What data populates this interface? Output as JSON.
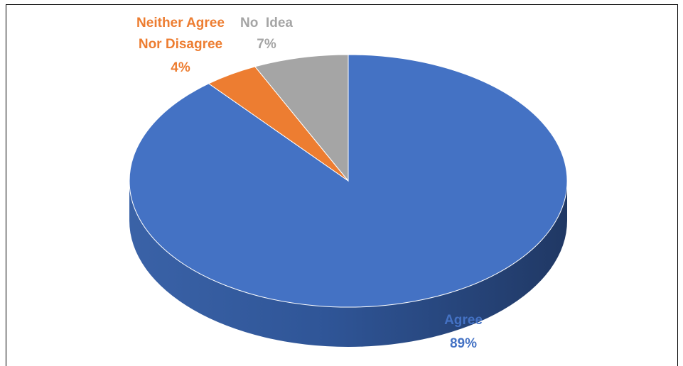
{
  "chart_data": {
    "type": "pie",
    "style": "3d",
    "title": "",
    "legend": "none",
    "slices": [
      {
        "label": "Agree",
        "value": 89,
        "value_label": "89%",
        "color": "#4472C4"
      },
      {
        "label": "Neither Agree Nor Disagree",
        "label_lines": [
          "Neither Agree",
          "Nor Disagree"
        ],
        "value": 4,
        "value_label": "4%",
        "color": "#ED7D31"
      },
      {
        "label": "No  Idea",
        "value": 7,
        "value_label": "7%",
        "color": "#A5A5A5"
      }
    ]
  }
}
